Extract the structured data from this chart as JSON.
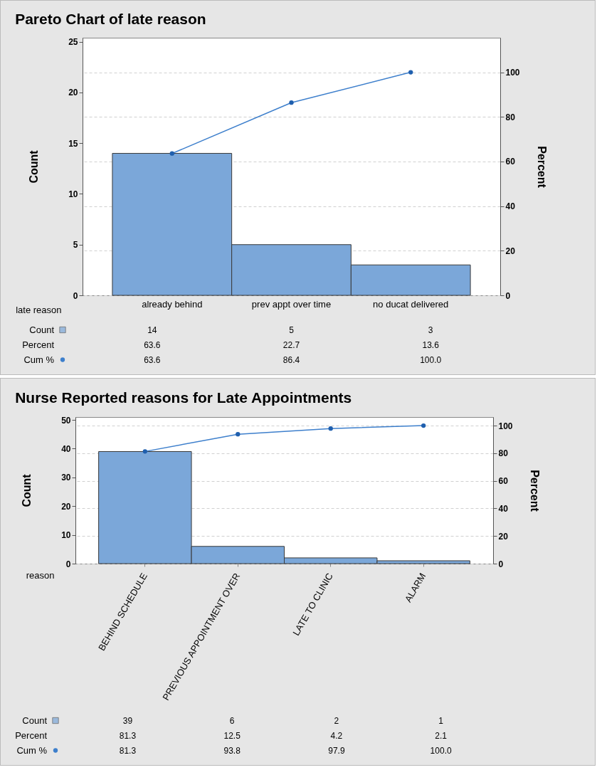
{
  "chart_data": [
    {
      "type": "bar",
      "title": "Pareto Chart of late reason",
      "xlabel": "late reason",
      "ylabel": "Count",
      "y2label": "Percent",
      "categories": [
        "already behind",
        "prev appt over time",
        "no ducat delivered"
      ],
      "ylim": [
        0,
        25.4
      ],
      "yticks": [
        0,
        5,
        10,
        15,
        20,
        25
      ],
      "y2lim": [
        0,
        115.5
      ],
      "y2ticks": [
        0,
        20,
        40,
        60,
        80,
        100
      ],
      "grid": true,
      "marker": "circle",
      "series": [
        {
          "name": "Count",
          "color": "#7ba7d9",
          "values": [
            14,
            5,
            3
          ],
          "value_labels": [
            "14",
            "5",
            "3"
          ]
        },
        {
          "name": "Cum %",
          "type": "line",
          "axis": "y2",
          "color": "#3d7fcc",
          "values": [
            63.6,
            86.4,
            100.0
          ],
          "value_labels": [
            "63.6",
            "86.4",
            "100.0"
          ]
        }
      ],
      "legend": "bottom left",
      "annotations": [
        "Percent",
        "63.6",
        "22.7",
        "13.6"
      ]
    },
    {
      "type": "bar",
      "title": "Nurse Reported reasons for Late Appointments",
      "xlabel": "reason",
      "ylabel": "Count",
      "y2label": "Percent",
      "categories": [
        "BEHIND SCHEDULE",
        "PREVIOUS APPOINTMENT OVER",
        "LATE TO CLINIC",
        "ALARM"
      ],
      "ylim": [
        0,
        51
      ],
      "yticks": [
        0,
        10,
        20,
        30,
        40,
        50
      ],
      "y2lim": [
        0,
        106.25
      ],
      "y2ticks": [
        0,
        20,
        40,
        60,
        80,
        100
      ],
      "grid": true,
      "marker": "circle",
      "series": [
        {
          "name": "Count",
          "color": "#7ba7d9",
          "values": [
            39,
            6,
            2,
            1
          ],
          "value_labels": [
            "39",
            "6",
            "2",
            "1"
          ]
        },
        {
          "name": "Cum %",
          "type": "line",
          "axis": "y2",
          "color": "#3d7fcc",
          "values": [
            81.3,
            93.8,
            97.9,
            100.0
          ],
          "value_labels": [
            "81.3",
            "93.8",
            "97.9",
            "100.0"
          ]
        }
      ],
      "legend": "bottom left",
      "annotations": [
        "Percent",
        "81.3",
        "12.5",
        "4.2",
        "2.1"
      ]
    }
  ]
}
